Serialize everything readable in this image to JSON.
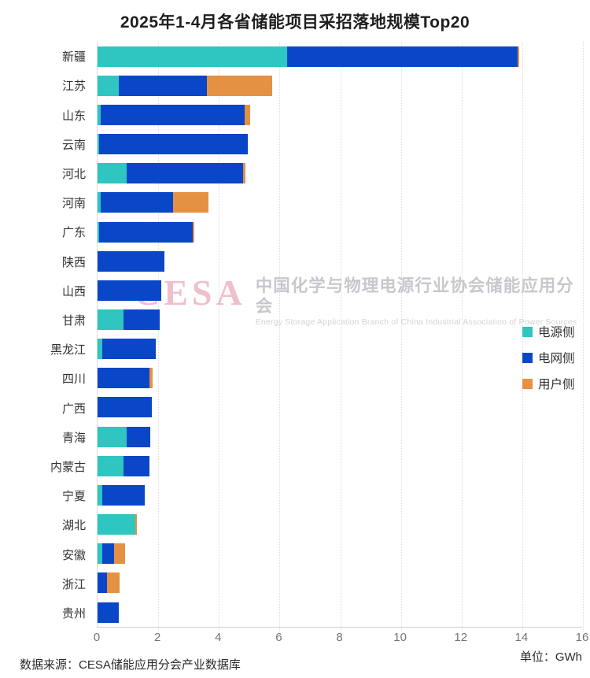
{
  "title": "2025年1-4月各省储能项目采招落地规模Top20",
  "footer": {
    "source": "数据来源：CESA储能应用分会产业数据库",
    "unit": "单位：GWh"
  },
  "watermark": {
    "logo": "CESA",
    "cn": "中国化学与物理电源行业协会储能应用分会",
    "en": "Energy Storage Application Branch of China Industrial Association of Power Sources"
  },
  "chart_data": {
    "type": "bar",
    "orientation": "horizontal",
    "stacked": true,
    "title": "2025年1-4月各省储能项目采招落地规模Top20",
    "unit": "GWh",
    "xlim": [
      0,
      16
    ],
    "x_ticks": [
      0,
      2,
      4,
      6,
      8,
      10,
      12,
      14,
      16
    ],
    "grid": "vertical-dotted",
    "legend_position": "right",
    "categories": [
      "新疆",
      "江苏",
      "山东",
      "云南",
      "河北",
      "河南",
      "广东",
      "陕西",
      "山西",
      "甘肃",
      "黑龙江",
      "四川",
      "广西",
      "青海",
      "内蒙古",
      "宁夏",
      "湖北",
      "安徽",
      "浙江",
      "贵州"
    ],
    "series": [
      {
        "name": "电源侧",
        "color": "#2FC5C0",
        "values": [
          6.25,
          0.7,
          0.1,
          0.05,
          0.95,
          0.1,
          0.05,
          0,
          0,
          0.85,
          0.15,
          0,
          0,
          0.95,
          0.85,
          0.15,
          1.25,
          0.15,
          0,
          0
        ]
      },
      {
        "name": "电网侧",
        "color": "#0A46C8",
        "values": [
          7.6,
          2.9,
          4.75,
          4.9,
          3.85,
          2.4,
          3.1,
          2.2,
          2.1,
          1.2,
          1.78,
          1.7,
          1.8,
          0.8,
          0.85,
          1.4,
          0,
          0.4,
          0.3,
          0.7
        ]
      },
      {
        "name": "用户侧",
        "color": "#E59144",
        "values": [
          0.05,
          2.15,
          0.18,
          0,
          0.08,
          1.15,
          0.05,
          0,
          0,
          0,
          0,
          0.12,
          0,
          0,
          0,
          0,
          0.04,
          0.35,
          0.42,
          0
        ]
      }
    ]
  }
}
